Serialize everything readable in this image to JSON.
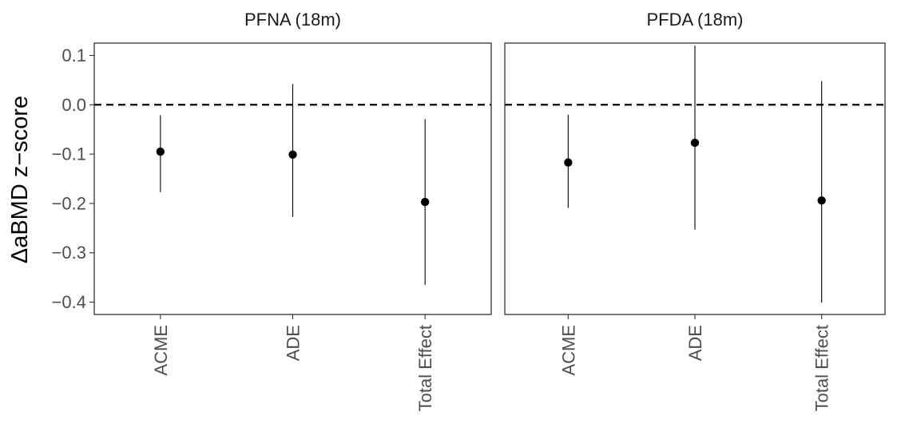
{
  "chart_data": {
    "type": "scatter",
    "ylabel": "ΔaBMD z−score",
    "xlabel": "",
    "ylim": [
      -0.425,
      0.125
    ],
    "y_ticks": [
      0.1,
      0.0,
      -0.1,
      -0.2,
      -0.3,
      -0.4
    ],
    "y_tick_labels": [
      "0.1",
      "0.0",
      "−0.1",
      "−0.2",
      "−0.3",
      "−0.4"
    ],
    "categories": [
      "ACME",
      "ADE",
      "Total Effect"
    ],
    "reference_line": {
      "y": 0.0,
      "style": "dashed"
    },
    "grid": false,
    "colors": {
      "points": "#000000",
      "panel_border": "#333333",
      "ref_line": "#000000"
    },
    "panels": [
      {
        "title": "PFNA (18m)",
        "points": [
          {
            "category": "ACME",
            "estimate": -0.095,
            "lower": -0.177,
            "upper": -0.021
          },
          {
            "category": "ADE",
            "estimate": -0.101,
            "lower": -0.227,
            "upper": 0.042
          },
          {
            "category": "Total Effect",
            "estimate": -0.197,
            "lower": -0.365,
            "upper": -0.029
          }
        ]
      },
      {
        "title": "PFDA (18m)",
        "points": [
          {
            "category": "ACME",
            "estimate": -0.117,
            "lower": -0.209,
            "upper": -0.02
          },
          {
            "category": "ADE",
            "estimate": -0.077,
            "lower": -0.253,
            "upper": 0.12
          },
          {
            "category": "Total Effect",
            "estimate": -0.194,
            "lower": -0.401,
            "upper": 0.048
          }
        ]
      }
    ]
  }
}
